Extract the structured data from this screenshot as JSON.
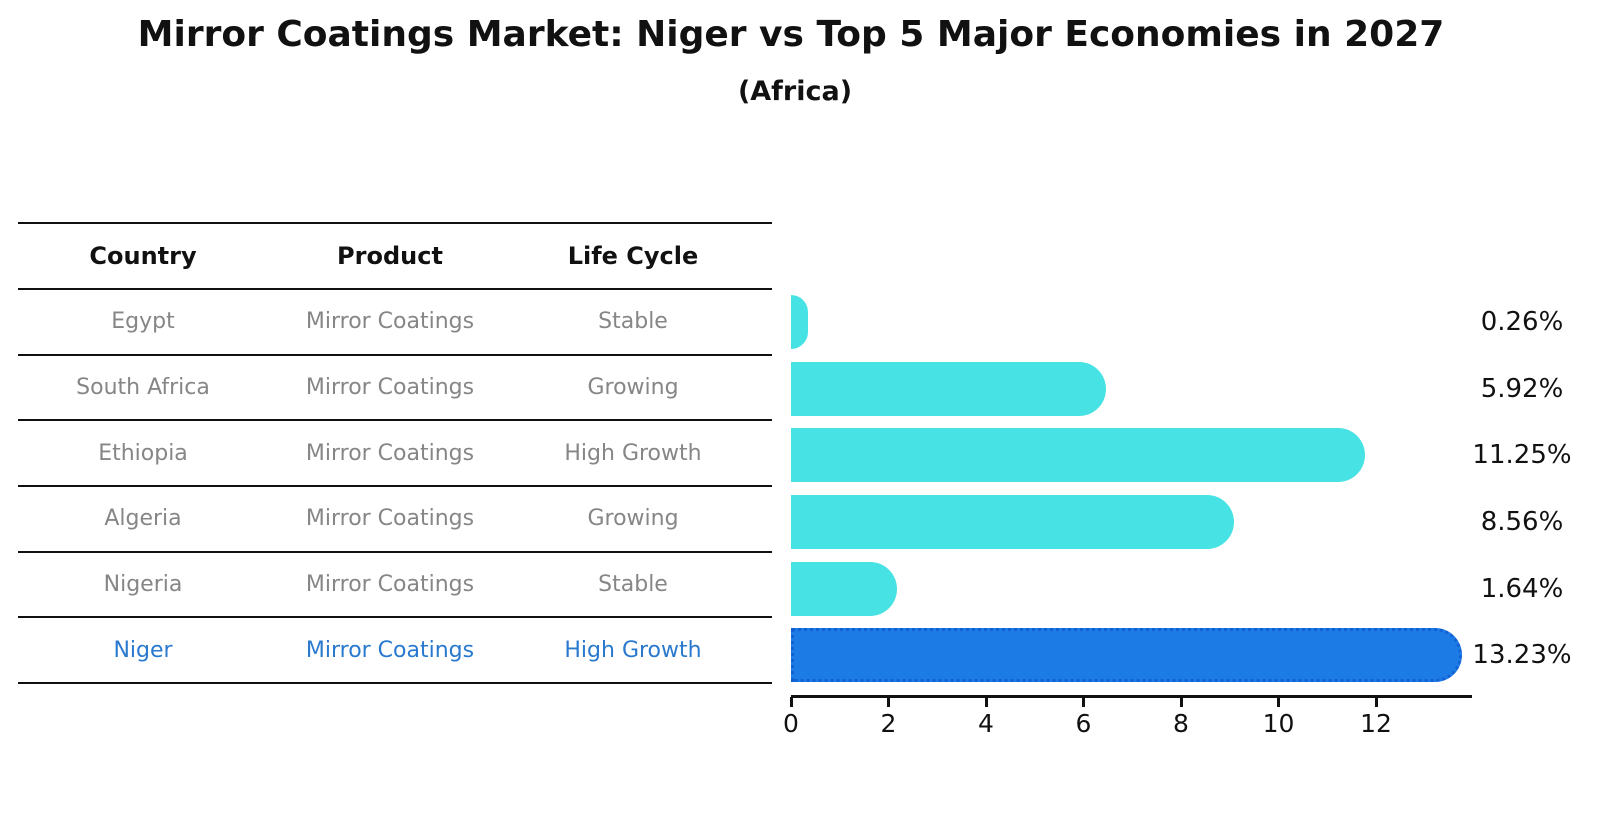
{
  "title": "Mirror Coatings Market: Niger vs Top 5 Major Economies in 2027",
  "subtitle": "(Africa)",
  "table": {
    "headers": {
      "country": "Country",
      "product": "Product",
      "life_cycle": "Life Cycle"
    },
    "rows": [
      {
        "country": "Egypt",
        "product": "Mirror Coatings",
        "life_cycle": "Stable"
      },
      {
        "country": "South Africa",
        "product": "Mirror Coatings",
        "life_cycle": "Growing"
      },
      {
        "country": "Ethiopia",
        "product": "Mirror Coatings",
        "life_cycle": "High Growth"
      },
      {
        "country": "Algeria",
        "product": "Mirror Coatings",
        "life_cycle": "Growing"
      },
      {
        "country": "Nigeria",
        "product": "Mirror Coatings",
        "life_cycle": "Stable"
      },
      {
        "country": "Niger",
        "product": "Mirror Coatings",
        "life_cycle": "High Growth"
      }
    ],
    "highlighted_country": "Niger"
  },
  "chart_data": {
    "type": "bar",
    "orientation": "horizontal",
    "title": "Mirror Coatings Market: Niger vs Top 5 Major Economies in 2027",
    "subtitle": "(Africa)",
    "categories": [
      "Egypt",
      "South Africa",
      "Ethiopia",
      "Algeria",
      "Nigeria",
      "Niger"
    ],
    "values": [
      0.26,
      5.92,
      11.25,
      8.56,
      1.64,
      13.23
    ],
    "value_labels": [
      "0.26%",
      "5.92%",
      "11.25%",
      "8.56%",
      "1.64%",
      "13.23%"
    ],
    "x_ticks": [
      0,
      2,
      4,
      6,
      8,
      10,
      12
    ],
    "xlim": [
      0,
      13.95
    ],
    "xlabel": "",
    "ylabel": "",
    "grid": false,
    "legend": false,
    "highlight_index": 5,
    "bar_color": "#47e2e4",
    "highlight_bar_color": "#1d7be6",
    "highlight_border_color": "#1261d4",
    "highlight_text_color": "#2979cf",
    "label_color": "#111111"
  }
}
